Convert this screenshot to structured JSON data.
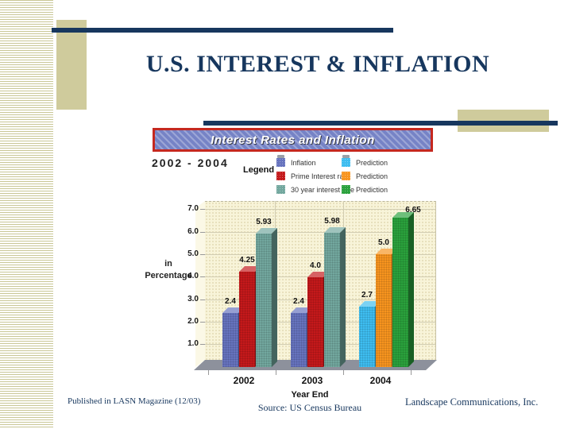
{
  "slide": {
    "title": "U.S. INTEREST & INFLATION",
    "footer_left": "Published in LASN Magazine (12/03)",
    "footer_right": "Landscape Communications, Inc."
  },
  "colors": {
    "navy": "#17375E",
    "tan": "#CFCB9C",
    "stripe": "#C9C796",
    "banner_red": "#C5281F",
    "banner_blue": "#7683C6",
    "wall": "#F8F4D9",
    "wall_light": "#FBF8E6",
    "floor": "#8D919C"
  },
  "chart_data": {
    "type": "bar",
    "title": "Interest Rates and Inflation",
    "subtitle": "2002 - 2004",
    "legend_title": "Legend",
    "xlabel": "Year End",
    "ylabel": "in Percentage",
    "source": "Source: US Census Bureau",
    "categories": [
      "2002",
      "2003",
      "2004"
    ],
    "ylim": [
      0,
      7
    ],
    "ytick_labels": [
      "1.0",
      "2.0",
      "3.0",
      "4.0",
      "5.0",
      "6.0",
      "7.0"
    ],
    "grid": true,
    "legend_position": "top-right",
    "prediction_category_index": 2,
    "series": [
      {
        "name": "Inflation",
        "color": "#6673BE",
        "values": [
          2.4,
          2.4,
          2.7
        ],
        "value_labels": [
          "2.4",
          "2.4",
          "2.7"
        ],
        "prediction": {
          "name": "Prediction",
          "color": "#3EBDF0"
        }
      },
      {
        "name": "Prime Interest rate",
        "color": "#C4191B",
        "values": [
          4.25,
          4.0,
          5.0
        ],
        "value_labels": [
          "4.25",
          "4.0",
          "5.0"
        ],
        "prediction": {
          "name": "Prediction",
          "color": "#F7941E"
        }
      },
      {
        "name": "30 year interest rate",
        "color": "#72A79E",
        "values": [
          5.93,
          5.98,
          6.65
        ],
        "value_labels": [
          "5.93",
          "5.98",
          "6.65"
        ],
        "prediction": {
          "name": "Prediction",
          "color": "#2AA13C"
        }
      }
    ]
  }
}
